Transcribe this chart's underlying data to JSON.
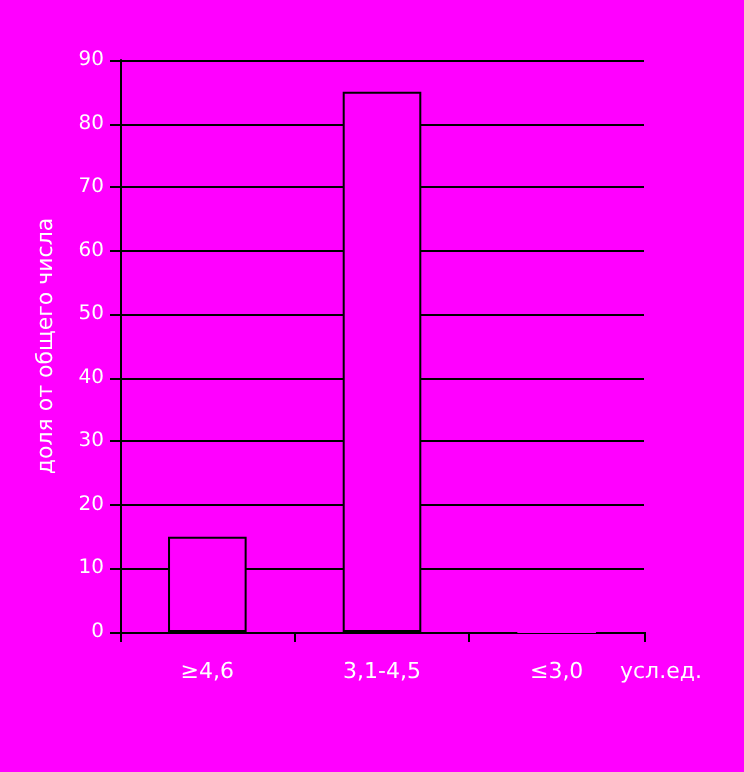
{
  "chart_data": {
    "type": "bar",
    "ylabel": "доля от общего числа",
    "xlabel": "усл.ед.",
    "categories": [
      "≥4,6",
      "3,1-4,5",
      "≤3,0"
    ],
    "values": [
      15,
      85,
      0
    ],
    "color": "#ff00ff",
    "ylim": [
      0,
      90
    ],
    "yticks": [
      0,
      10,
      20,
      30,
      40,
      50,
      60,
      70,
      80,
      90
    ],
    "grid": "y"
  }
}
